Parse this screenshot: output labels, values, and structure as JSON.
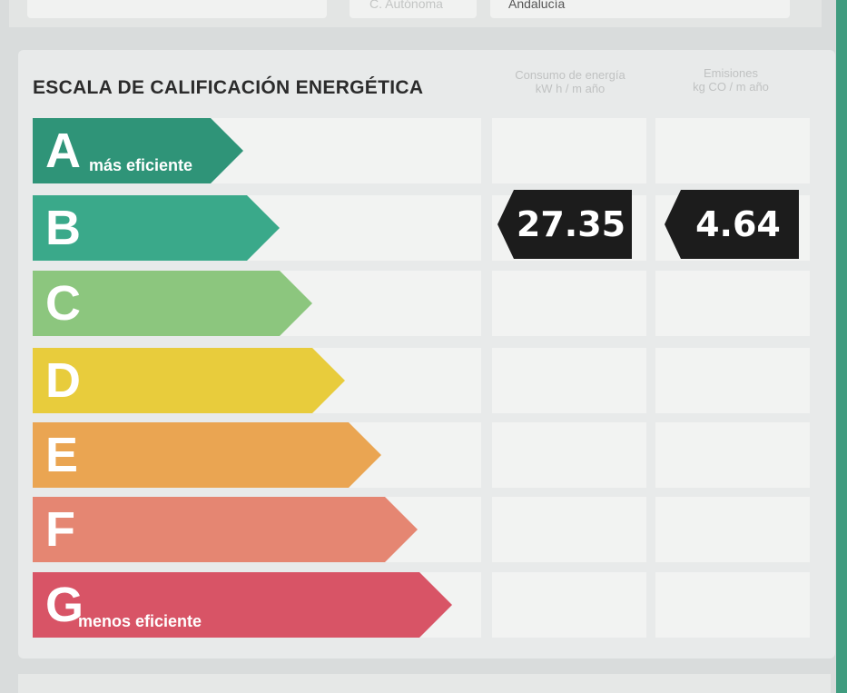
{
  "top": {
    "left_text": "",
    "label": "C. Autónoma",
    "value": "Andalucía"
  },
  "scale": {
    "title": "ESCALA DE CALIFICACIÓN ENERGÉTICA",
    "col_consumo_line1": "Consumo de energía",
    "col_consumo_line2": "kW h / m  año",
    "col_emisiones_line1": "Emisiones",
    "col_emisiones_line2": "kg CO  / m  año",
    "classes": [
      {
        "letter": "A",
        "note": "más eficiente",
        "color": "#2f9478"
      },
      {
        "letter": "B",
        "note": "",
        "color": "#3aa98a"
      },
      {
        "letter": "C",
        "note": "",
        "color": "#8cc67e"
      },
      {
        "letter": "D",
        "note": "",
        "color": "#e8cc3c"
      },
      {
        "letter": "E",
        "note": "",
        "color": "#eaa552"
      },
      {
        "letter": "F",
        "note": "",
        "color": "#e58672"
      },
      {
        "letter": "G",
        "note": "menos eficiente",
        "color": "#d85466"
      }
    ],
    "rating": {
      "class": "B",
      "consumo": "27.35",
      "emisiones": "4.64",
      "badge_color": "#1c1c1c"
    }
  }
}
